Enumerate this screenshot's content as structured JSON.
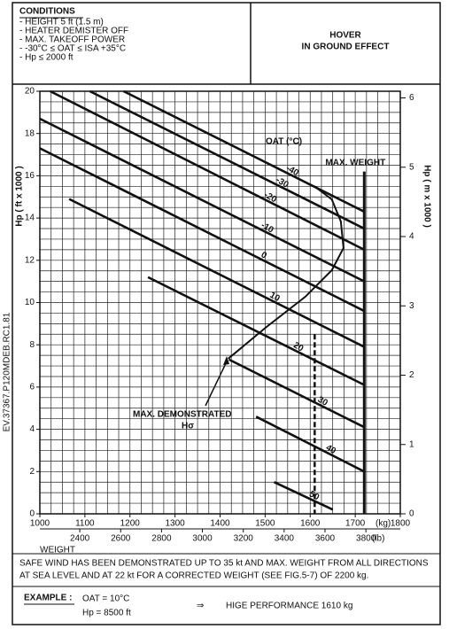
{
  "header": {
    "conditions_title": "CONDITIONS",
    "conditions": [
      "- HEIGHT 5 ft (1.5 m)",
      "- HEATER DEMISTER OFF",
      "- MAX. TAKEOFF POWER",
      "- -30°C ≤ OAT ≤ ISA +35°C",
      "- Hp ≤ 2000 ft"
    ],
    "title_lines": [
      "HOVER",
      "IN GROUND EFFECT"
    ]
  },
  "side_code": "EV.37367.P120MDEB.RC1.81",
  "chart_data": {
    "type": "line",
    "ylabel": "Hp ( ft x 1000 )",
    "y2label": "Hp ( m x 1000 )",
    "xlabel": "WEIGHT",
    "xunit": "(kg)",
    "x2unit": "(lb)",
    "xlim": [
      1000,
      1800
    ],
    "xticks": [
      1000,
      1100,
      1200,
      1300,
      1400,
      1500,
      1600,
      1700,
      1800
    ],
    "x2lim": [
      2204.6,
      3968.3
    ],
    "x2ticks": [
      2400,
      2600,
      2800,
      3000,
      3200,
      3400,
      3600,
      3800
    ],
    "ylim": [
      0,
      20
    ],
    "yticks": [
      0,
      2,
      4,
      6,
      8,
      10,
      12,
      14,
      16,
      18,
      20
    ],
    "y2lim": [
      0,
      6.096
    ],
    "y2ticks": [
      0,
      1,
      2,
      3,
      4,
      5,
      6
    ],
    "grid": true,
    "grid_x_step": 25,
    "grid_y_step": 0.5,
    "legend_title": "OAT (°C)",
    "series": [
      {
        "name": "-40",
        "color": "#111",
        "x": [
          1186,
          1720
        ],
        "values": [
          20,
          14.3
        ]
      },
      {
        "name": "-30",
        "color": "#111",
        "x": [
          1111,
          1720
        ],
        "values": [
          20,
          13.5
        ]
      },
      {
        "name": "-20",
        "color": "#111",
        "x": [
          1023,
          1720
        ],
        "values": [
          20,
          12.5
        ]
      },
      {
        "name": "-10",
        "color": "#111",
        "x": [
          1000,
          1720
        ],
        "values": [
          18.7,
          11.0
        ]
      },
      {
        "name": "0",
        "color": "#111",
        "x": [
          1000,
          1720
        ],
        "values": [
          17.3,
          9.6
        ]
      },
      {
        "name": "10",
        "color": "#111",
        "x": [
          1065,
          1720
        ],
        "values": [
          14.9,
          7.9
        ]
      },
      {
        "name": "20",
        "color": "#111",
        "x": [
          1240,
          1720
        ],
        "values": [
          11.2,
          6.1
        ]
      },
      {
        "name": "30",
        "color": "#111",
        "x": [
          1420,
          1720
        ],
        "values": [
          7.3,
          4.1
        ]
      },
      {
        "name": "40",
        "color": "#111",
        "x": [
          1480,
          1720
        ],
        "values": [
          4.6,
          2.0
        ]
      },
      {
        "name": "50",
        "color": "#111",
        "x": [
          1520,
          1650
        ],
        "values": [
          1.5,
          0.2
        ]
      }
    ],
    "max_weight": {
      "label": "MAX. WEIGHT",
      "x": [
        1720,
        1720
      ],
      "values": [
        0,
        16.2
      ]
    },
    "max_demonstrated": {
      "label": "MAX. DEMONSTRATED",
      "sublabel": "Hσ",
      "x": [
        1418,
        1501,
        1589,
        1648,
        1674,
        1668,
        1648,
        1609
      ],
      "values": [
        7.34,
        8.81,
        10.27,
        11.53,
        12.58,
        13.84,
        14.88,
        15.51
      ]
    },
    "example_path": {
      "x": [
        1610,
        1610
      ],
      "values": [
        8.5,
        0
      ]
    }
  },
  "note": [
    "SAFE WIND HAS BEEN DEMONSTRATED UP TO 35 kt AND MAX. WEIGHT FROM ALL DIRECTIONS",
    "AT SEA LEVEL AND AT 22 kt FOR A CORRECTED WEIGHT (SEE FIG.5-7) OF 2200 kg."
  ],
  "example": {
    "label": "EXAMPLE :",
    "oat": "OAT = 10°C",
    "hp": "Hp = 8500 ft",
    "arrow": "⇒",
    "result": "HIGE PERFORMANCE 1610 kg"
  }
}
